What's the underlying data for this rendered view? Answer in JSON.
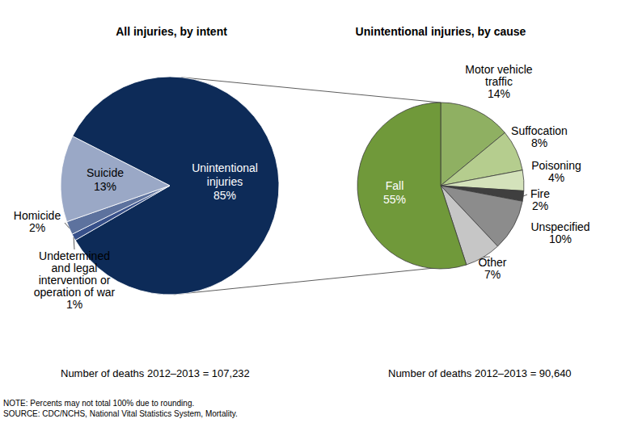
{
  "chart_data": [
    {
      "type": "pie",
      "title": "All injuries, by intent",
      "categories": [
        "Unintentional injuries",
        "Undetermined and legal intervention or operation of war",
        "Homicide",
        "Suicide"
      ],
      "values": [
        85,
        1,
        2,
        13
      ],
      "value_labels": [
        "85%",
        "1%",
        "2%",
        "13%"
      ],
      "colors": [
        "#0d2b58",
        "#37508a",
        "#5d729e",
        "#9aa8c6"
      ],
      "data_labels": true,
      "annotations": [
        "Number of deaths 2012–2013 = 107,232"
      ]
    },
    {
      "type": "pie",
      "title": "Unintentional injuries, by cause",
      "categories": [
        "Motor vehicle traffic",
        "Suffocation",
        "Poisoning",
        "Fire",
        "Unspecified",
        "Other",
        "Fall"
      ],
      "values": [
        14,
        8,
        4,
        2,
        10,
        7,
        55
      ],
      "value_labels": [
        "14%",
        "8%",
        "4%",
        "2%",
        "10%",
        "7%",
        "55%"
      ],
      "colors": [
        "#8fb062",
        "#b5cd8e",
        "#d4e2bb",
        "#3f3f3f",
        "#8c8c8c",
        "#c6c6c6",
        "#70993a"
      ],
      "data_labels": true,
      "annotations": [
        "Number of deaths 2012–2013 = 90,640"
      ]
    }
  ],
  "notes": [
    "NOTE: Percents may not total 100% due to rounding.",
    "SOURCE: CDC/NCHS, National Vital Statistics System, Mortality."
  ]
}
